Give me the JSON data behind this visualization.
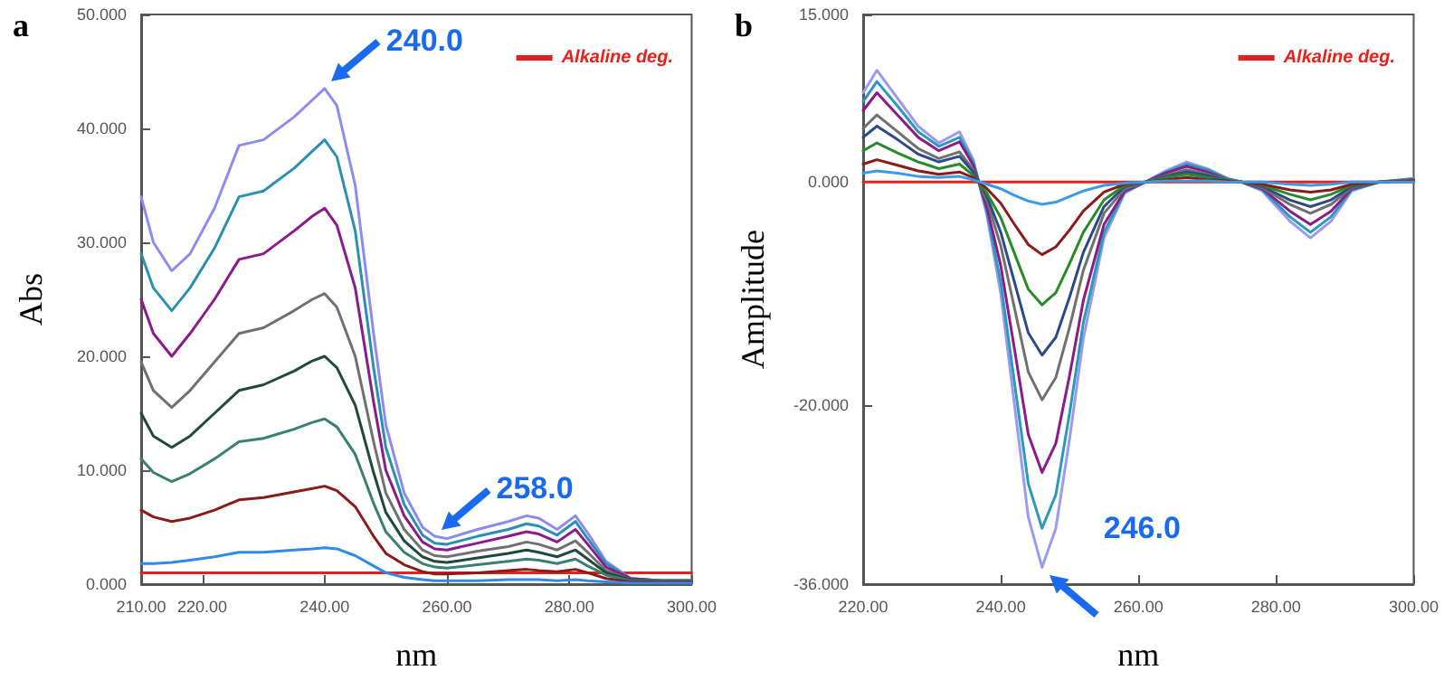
{
  "chart_data": [
    {
      "type": "line",
      "title": "a",
      "xlabel": "nm",
      "ylabel": "Abs",
      "legend": "top right",
      "grid": false,
      "marker": "none",
      "line_style": "solid",
      "x": [
        210,
        212,
        215,
        218,
        222,
        226,
        230,
        235,
        238,
        240,
        242,
        245,
        248,
        250,
        253,
        256,
        258,
        260,
        265,
        270,
        273,
        275,
        278,
        281,
        283,
        286,
        290,
        295,
        300
      ],
      "xlim": [
        210,
        300
      ],
      "xticks": [
        {
          "value": 210,
          "label": "210.00"
        },
        {
          "value": 220,
          "label": "220.00"
        },
        {
          "value": 240,
          "label": "240.00"
        },
        {
          "value": 260,
          "label": "260.00"
        },
        {
          "value": 280,
          "label": "280.00"
        },
        {
          "value": 300,
          "label": "300.00"
        }
      ],
      "ylim": [
        0,
        50
      ],
      "yticks": [
        {
          "value": 0,
          "label": "0.000"
        },
        {
          "value": 10,
          "label": "10.000"
        },
        {
          "value": 20,
          "label": "20.000"
        },
        {
          "value": 30,
          "label": "30.000"
        },
        {
          "value": 40,
          "label": "40.000"
        },
        {
          "value": 50,
          "label": "50.000"
        }
      ],
      "series": [
        {
          "color": "#8c8cf0",
          "values": [
            34,
            30,
            27.5,
            29,
            33,
            38.5,
            39,
            41,
            42.5,
            43.5,
            42,
            35,
            22,
            14,
            8,
            5,
            4.2,
            4,
            4.8,
            5.5,
            6,
            5.8,
            4.8,
            6,
            4.5,
            2,
            0.5,
            0.3,
            0.3
          ]
        },
        {
          "color": "#2a8fb0",
          "values": [
            29,
            26,
            24,
            26,
            29.5,
            34,
            34.5,
            36.5,
            38,
            39,
            37.5,
            31,
            19,
            12,
            7,
            4.3,
            3.6,
            3.5,
            4.2,
            4.8,
            5.3,
            5.1,
            4.3,
            5.5,
            4,
            1.8,
            0.5,
            0.3,
            0.3
          ]
        },
        {
          "color": "#8b1a8b",
          "values": [
            25,
            22,
            20,
            22,
            25,
            28.5,
            29,
            31,
            32.3,
            33,
            31.5,
            26,
            16,
            10,
            6,
            3.7,
            3.1,
            3,
            3.6,
            4.2,
            4.6,
            4.4,
            3.7,
            4.8,
            3.5,
            1.5,
            0.5,
            0.3,
            0.3
          ]
        },
        {
          "color": "#707070",
          "values": [
            19.5,
            17,
            15.5,
            17,
            19.5,
            22,
            22.5,
            24,
            25,
            25.5,
            24.3,
            20,
            12.5,
            8,
            4.8,
            3,
            2.5,
            2.4,
            2.9,
            3.3,
            3.7,
            3.5,
            3,
            3.8,
            2.8,
            1.2,
            0.4,
            0.3,
            0.3
          ]
        },
        {
          "color": "#1f4a3a",
          "values": [
            15,
            13,
            12,
            13,
            15,
            17,
            17.5,
            18.7,
            19.6,
            20,
            19,
            15.7,
            9.8,
            6.3,
            3.8,
            2.4,
            2,
            1.9,
            2.3,
            2.7,
            3,
            2.8,
            2.4,
            3,
            2.2,
            1,
            0.4,
            0.3,
            0.3
          ]
        },
        {
          "color": "#3a8070",
          "values": [
            11,
            9.8,
            9,
            9.7,
            11,
            12.5,
            12.8,
            13.6,
            14.2,
            14.5,
            13.8,
            11.4,
            7.1,
            4.6,
            2.8,
            1.8,
            1.5,
            1.4,
            1.7,
            2,
            2.2,
            2.1,
            1.8,
            2.2,
            1.6,
            0.8,
            0.3,
            0.3,
            0.3
          ]
        },
        {
          "color": "#8b1a1a",
          "values": [
            6.5,
            5.9,
            5.5,
            5.8,
            6.5,
            7.4,
            7.6,
            8.1,
            8.4,
            8.6,
            8.2,
            6.8,
            4.2,
            2.7,
            1.7,
            1.1,
            0.9,
            0.9,
            1,
            1.2,
            1.3,
            1.2,
            1.1,
            1.3,
            1,
            0.5,
            0.2,
            0.2,
            0.2
          ]
        },
        {
          "color": "#2e8ae6",
          "values": [
            1.8,
            1.8,
            1.9,
            2.1,
            2.4,
            2.8,
            2.8,
            3,
            3.1,
            3.2,
            3.1,
            2.5,
            1.6,
            1,
            0.6,
            0.4,
            0.3,
            0.3,
            0.3,
            0.4,
            0.4,
            0.4,
            0.3,
            0.4,
            0.3,
            0.2,
            0.1,
            0.1,
            0.1
          ]
        },
        {
          "name": "Alkaline deg.",
          "color": "#e8201c",
          "x": [
            210,
            300
          ],
          "values": [
            1,
            1
          ]
        }
      ],
      "annotations": [
        {
          "text": "240.0",
          "x": 240,
          "y": 43.5
        },
        {
          "text": "258.0",
          "x": 258,
          "y": 4.2
        }
      ]
    },
    {
      "type": "line",
      "title": "b",
      "xlabel": "nm",
      "ylabel": "Amplitude",
      "legend": "top right",
      "grid": false,
      "marker": "none",
      "line_style": "solid",
      "x": [
        220,
        222,
        225,
        228,
        231,
        234,
        236,
        238,
        240,
        242,
        244,
        246,
        248,
        250,
        252,
        255,
        258,
        261,
        264,
        267,
        270,
        273,
        275,
        278,
        282,
        285,
        288,
        291,
        295,
        300
      ],
      "xlim": [
        220,
        300
      ],
      "xticks": [
        {
          "value": 220,
          "label": "220.00"
        },
        {
          "value": 240,
          "label": "240.00"
        },
        {
          "value": 260,
          "label": "260.00"
        },
        {
          "value": 280,
          "label": "280.00"
        },
        {
          "value": 300,
          "label": "300.00"
        }
      ],
      "ylim": [
        -36,
        15
      ],
      "yticks": [
        {
          "value": -36,
          "label": "-36.000"
        },
        {
          "value": -20,
          "label": "-20.000"
        },
        {
          "value": 0,
          "label": "0.000"
        },
        {
          "value": 15,
          "label": "15.000"
        }
      ],
      "series": [
        {
          "color": "#9a9af0",
          "values": [
            8,
            10,
            7.5,
            5,
            3.5,
            4.5,
            2,
            -3,
            -10,
            -20,
            -30,
            -34.5,
            -31,
            -23,
            -14,
            -5,
            -1,
            0,
            1,
            1.8,
            1.2,
            0.3,
            0,
            -0.8,
            -3.5,
            -5,
            -3.5,
            -0.8,
            0,
            0.3
          ]
        },
        {
          "color": "#2a9ab8",
          "values": [
            7.2,
            9,
            6.8,
            4.5,
            3.2,
            4,
            1.8,
            -2.7,
            -9,
            -18,
            -27,
            -31,
            -28,
            -20.7,
            -12.6,
            -4.5,
            -0.9,
            0,
            0.9,
            1.6,
            1.1,
            0.3,
            0,
            -0.7,
            -3.1,
            -4.5,
            -3.1,
            -0.7,
            0,
            0.3
          ]
        },
        {
          "color": "#8b1a8b",
          "values": [
            6.4,
            8,
            6,
            4,
            2.8,
            3.6,
            1.5,
            -2.3,
            -7.5,
            -15,
            -22.6,
            -26,
            -23.4,
            -17.3,
            -10.6,
            -3.8,
            -0.8,
            0,
            0.8,
            1.4,
            0.9,
            0.2,
            0,
            -0.6,
            -2.6,
            -3.8,
            -2.6,
            -0.6,
            0,
            0.2
          ]
        },
        {
          "color": "#707070",
          "values": [
            4.8,
            6,
            4.5,
            3,
            2.1,
            2.7,
            1.1,
            -1.7,
            -5.7,
            -11.3,
            -17,
            -19.5,
            -17.5,
            -13,
            -7.9,
            -2.8,
            -0.6,
            0,
            0.6,
            1.1,
            0.7,
            0.2,
            0,
            -0.5,
            -2,
            -2.8,
            -2,
            -0.5,
            0,
            0.2
          ]
        },
        {
          "color": "#2a4a8a",
          "values": [
            4,
            5,
            3.8,
            2.5,
            1.8,
            2.3,
            0.9,
            -1.3,
            -4.5,
            -9,
            -13.5,
            -15.5,
            -13.9,
            -10.3,
            -6.3,
            -2.2,
            -0.4,
            0,
            0.5,
            0.9,
            0.6,
            0.1,
            0,
            -0.4,
            -1.6,
            -2.2,
            -1.6,
            -0.4,
            0,
            0.1
          ]
        },
        {
          "color": "#2a8a2a",
          "values": [
            2.8,
            3.5,
            2.6,
            1.8,
            1.2,
            1.6,
            0.6,
            -1,
            -3.2,
            -6.4,
            -9.6,
            -11,
            -9.9,
            -7.3,
            -4.5,
            -1.6,
            -0.3,
            0,
            0.4,
            0.7,
            0.4,
            0.1,
            0,
            -0.3,
            -1.1,
            -1.6,
            -1.1,
            -0.3,
            0,
            0.1
          ]
        },
        {
          "color": "#8b1a1a",
          "values": [
            1.6,
            2,
            1.5,
            1,
            0.7,
            0.9,
            0.4,
            -0.6,
            -1.9,
            -3.8,
            -5.6,
            -6.5,
            -5.8,
            -4.3,
            -2.6,
            -0.9,
            -0.2,
            0,
            0.2,
            0.4,
            0.2,
            0.1,
            0,
            -0.2,
            -0.7,
            -0.9,
            -0.7,
            -0.2,
            0,
            0.1
          ]
        },
        {
          "color": "#3a9ae8",
          "values": [
            0.8,
            1,
            0.8,
            0.5,
            0.4,
            0.5,
            0.2,
            -0.2,
            -0.6,
            -1.2,
            -1.7,
            -2,
            -1.8,
            -1.3,
            -0.8,
            -0.3,
            -0.1,
            0,
            0.1,
            0.1,
            0.1,
            0,
            0,
            0,
            -0.2,
            -0.3,
            -0.2,
            0,
            0,
            0
          ]
        },
        {
          "name": "Alkaline deg.",
          "color": "#e8201c",
          "x": [
            220,
            300
          ],
          "values": [
            0,
            0
          ]
        }
      ],
      "annotations": [
        {
          "text": "246.0",
          "x": 246,
          "y": -34.5
        }
      ]
    }
  ]
}
